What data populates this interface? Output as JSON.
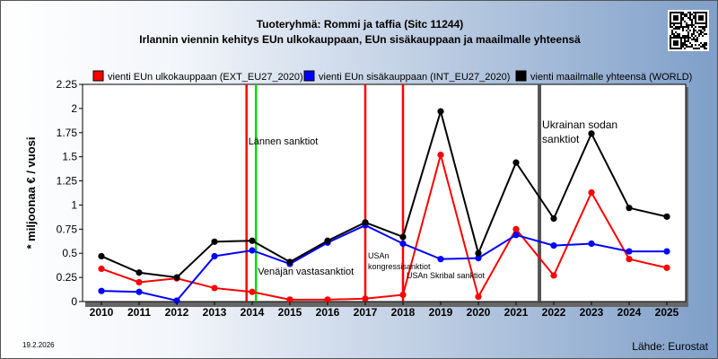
{
  "header": {
    "title_line1": "Tuoteryhmä: Rommi ja taffia (Sitc 11244)",
    "title_line2": "Irlannin viennin kehitys EUn ulkokauppaan, EUn sisäkauppaan ja maailmalle yhteensä"
  },
  "footer": {
    "date": "19.2.2026",
    "source": "Lähde: Eurostat"
  },
  "chart_data": {
    "type": "line",
    "title": "Tuoteryhmä: Rommi ja taffia (Sitc 11244)",
    "subtitle": "Irlannin viennin kehitys EUn ulkokauppaan, EUn sisäkauppaan ja maailmalle yhteensä",
    "ylabel": "* miljoonaa € / vuosi",
    "xlabel": "",
    "ylim": [
      0,
      2.25
    ],
    "yticks": [
      0,
      0.25,
      0.5,
      0.75,
      1,
      1.25,
      1.5,
      1.75,
      2,
      2.25
    ],
    "ytick_labels": [
      "0",
      "0.25",
      "0.5",
      "0.75",
      "1",
      "1.25",
      "1.5",
      "1.75",
      "2",
      "2.25"
    ],
    "x": [
      "2010",
      "2011",
      "2012",
      "2013",
      "2014",
      "2015",
      "2016",
      "2017",
      "2018",
      "2019",
      "2020",
      "2021",
      "2022",
      "2023",
      "2024",
      "2025"
    ],
    "grid": false,
    "legend_position": "top",
    "series": [
      {
        "name": "vienti EUn ulkokauppaan (EXT_EU27_2020)",
        "color": "#ff0000",
        "values": [
          0.34,
          0.2,
          0.24,
          0.14,
          0.1,
          0.02,
          0.02,
          0.03,
          0.07,
          1.52,
          0.05,
          0.75,
          0.27,
          1.13,
          0.44,
          0.35
        ]
      },
      {
        "name": "vienti EUn sisäkauppaan (INT_EU27_2020)",
        "color": "#0000ff",
        "values": [
          0.11,
          0.1,
          0.01,
          0.47,
          0.53,
          0.39,
          0.61,
          0.79,
          0.6,
          0.44,
          0.45,
          0.69,
          0.58,
          0.6,
          0.52,
          0.52
        ]
      },
      {
        "name": "vienti maailmalle yhteensä (WORLD)",
        "color": "#000000",
        "values": [
          0.47,
          0.3,
          0.25,
          0.62,
          0.63,
          0.41,
          0.63,
          0.82,
          0.67,
          1.97,
          0.5,
          1.44,
          0.86,
          1.74,
          0.97,
          0.88
        ]
      }
    ],
    "annotations": [
      {
        "text": "Lännen sanktiot",
        "x": 2013.85,
        "color": "#ff0000"
      },
      {
        "text": "Venäjän vastasanktiot",
        "x": 2014.1,
        "color": "#00dd00"
      },
      {
        "text": "USAn kongressisanktiot",
        "x": 2017.0,
        "color": "#ff0000"
      },
      {
        "text": "USAn Skribal sanktiot",
        "x": 2018.0,
        "color": "#ff0000"
      },
      {
        "text": "Ukrainan sodan sanktiot",
        "x": 2021.62,
        "color": "#555555"
      }
    ]
  }
}
